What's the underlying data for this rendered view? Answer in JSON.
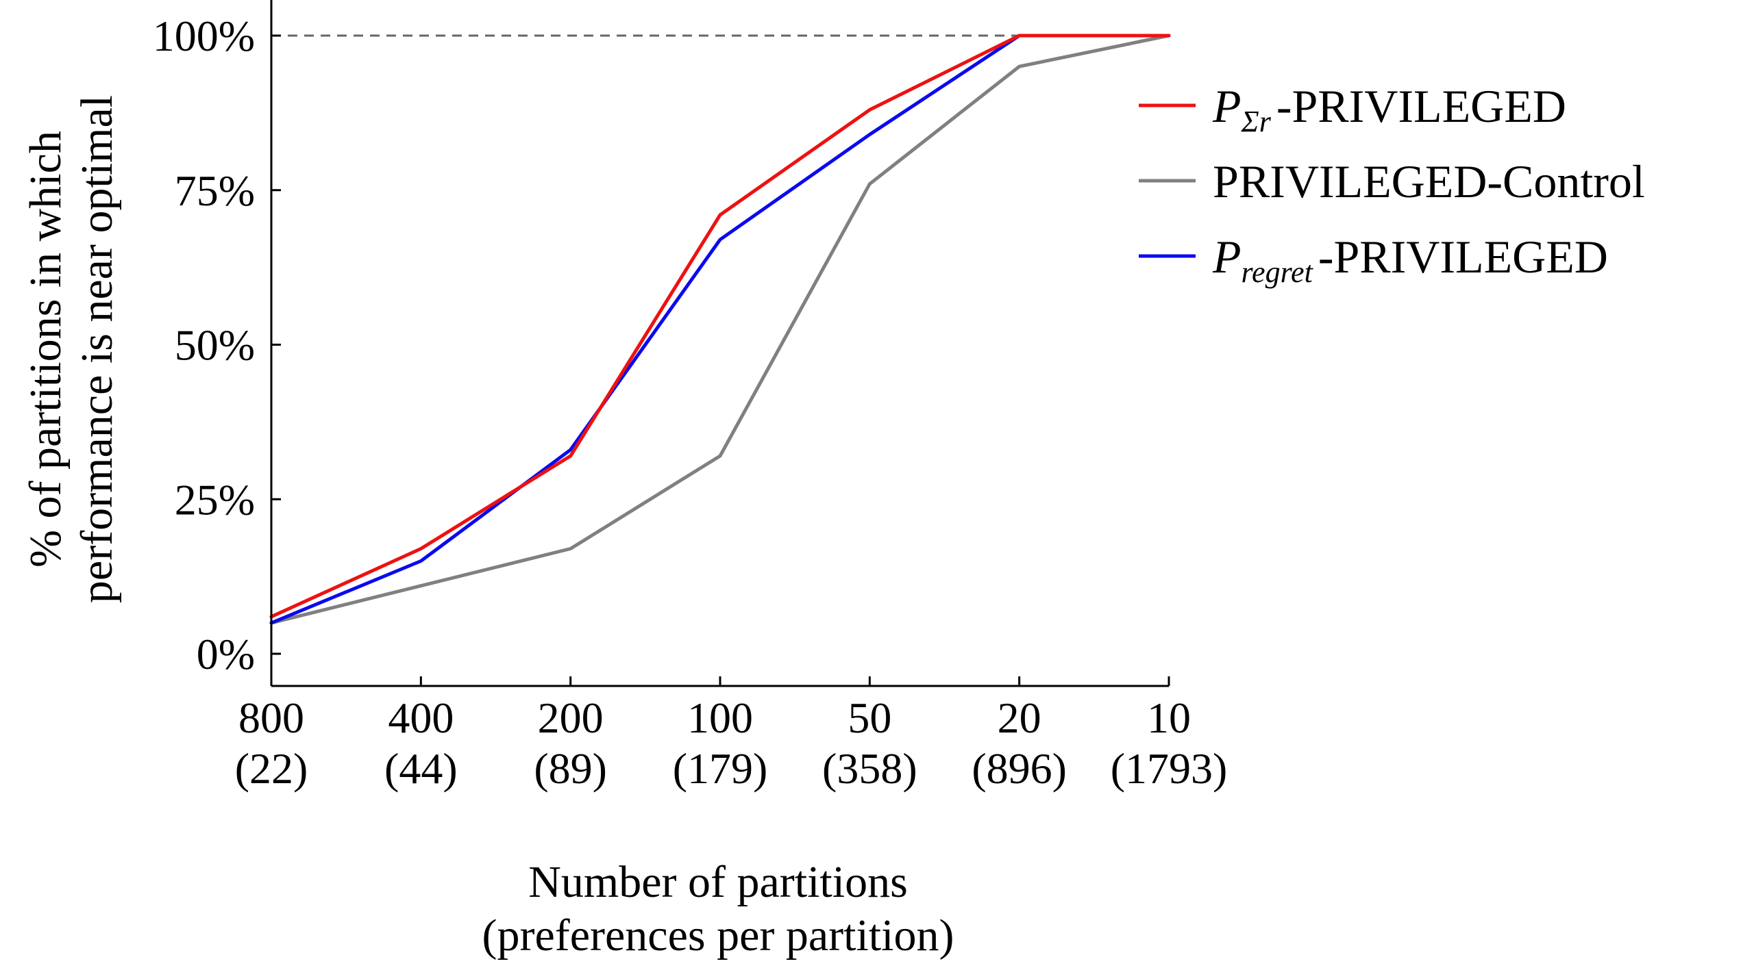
{
  "chart_data": {
    "type": "line",
    "title": "",
    "xlabel_line1": "Number of partitions",
    "xlabel_line2": "(preferences per partition)",
    "ylabel_line1": "% of partitions in which",
    "ylabel_line2": "performance is near optimal",
    "categories": [
      "800",
      "400",
      "200",
      "100",
      "50",
      "20",
      "10"
    ],
    "category_sublabels": [
      "(22)",
      "(44)",
      "(89)",
      "(179)",
      "(358)",
      "(896)",
      "(1793)"
    ],
    "yticks": [
      {
        "value": 0,
        "label": "0%"
      },
      {
        "value": 25,
        "label": "25%"
      },
      {
        "value": 50,
        "label": "50%"
      },
      {
        "value": 75,
        "label": "75%"
      },
      {
        "value": 100,
        "label": "100%"
      }
    ],
    "ylim": [
      -5,
      105
    ],
    "reference_line": {
      "value": 100,
      "style": "dashed"
    },
    "legend_position": "right",
    "series": [
      {
        "name_prefix": "P",
        "name_subscript": "Σr",
        "name_suffix": "-PRIVILEGED",
        "color": "#ee1111",
        "values": [
          6,
          17,
          32,
          71,
          88,
          100,
          100
        ]
      },
      {
        "name_prefix": "",
        "name_subscript": "",
        "name_suffix": "PRIVILEGED-Control",
        "color": "#808080",
        "values": [
          5,
          11,
          17,
          32,
          76,
          95,
          100
        ]
      },
      {
        "name_prefix": "P",
        "name_subscript": "regret",
        "name_suffix": "-PRIVILEGED",
        "color": "#0a0aee",
        "values": [
          5,
          15,
          33,
          67,
          84,
          100,
          100
        ]
      }
    ]
  }
}
